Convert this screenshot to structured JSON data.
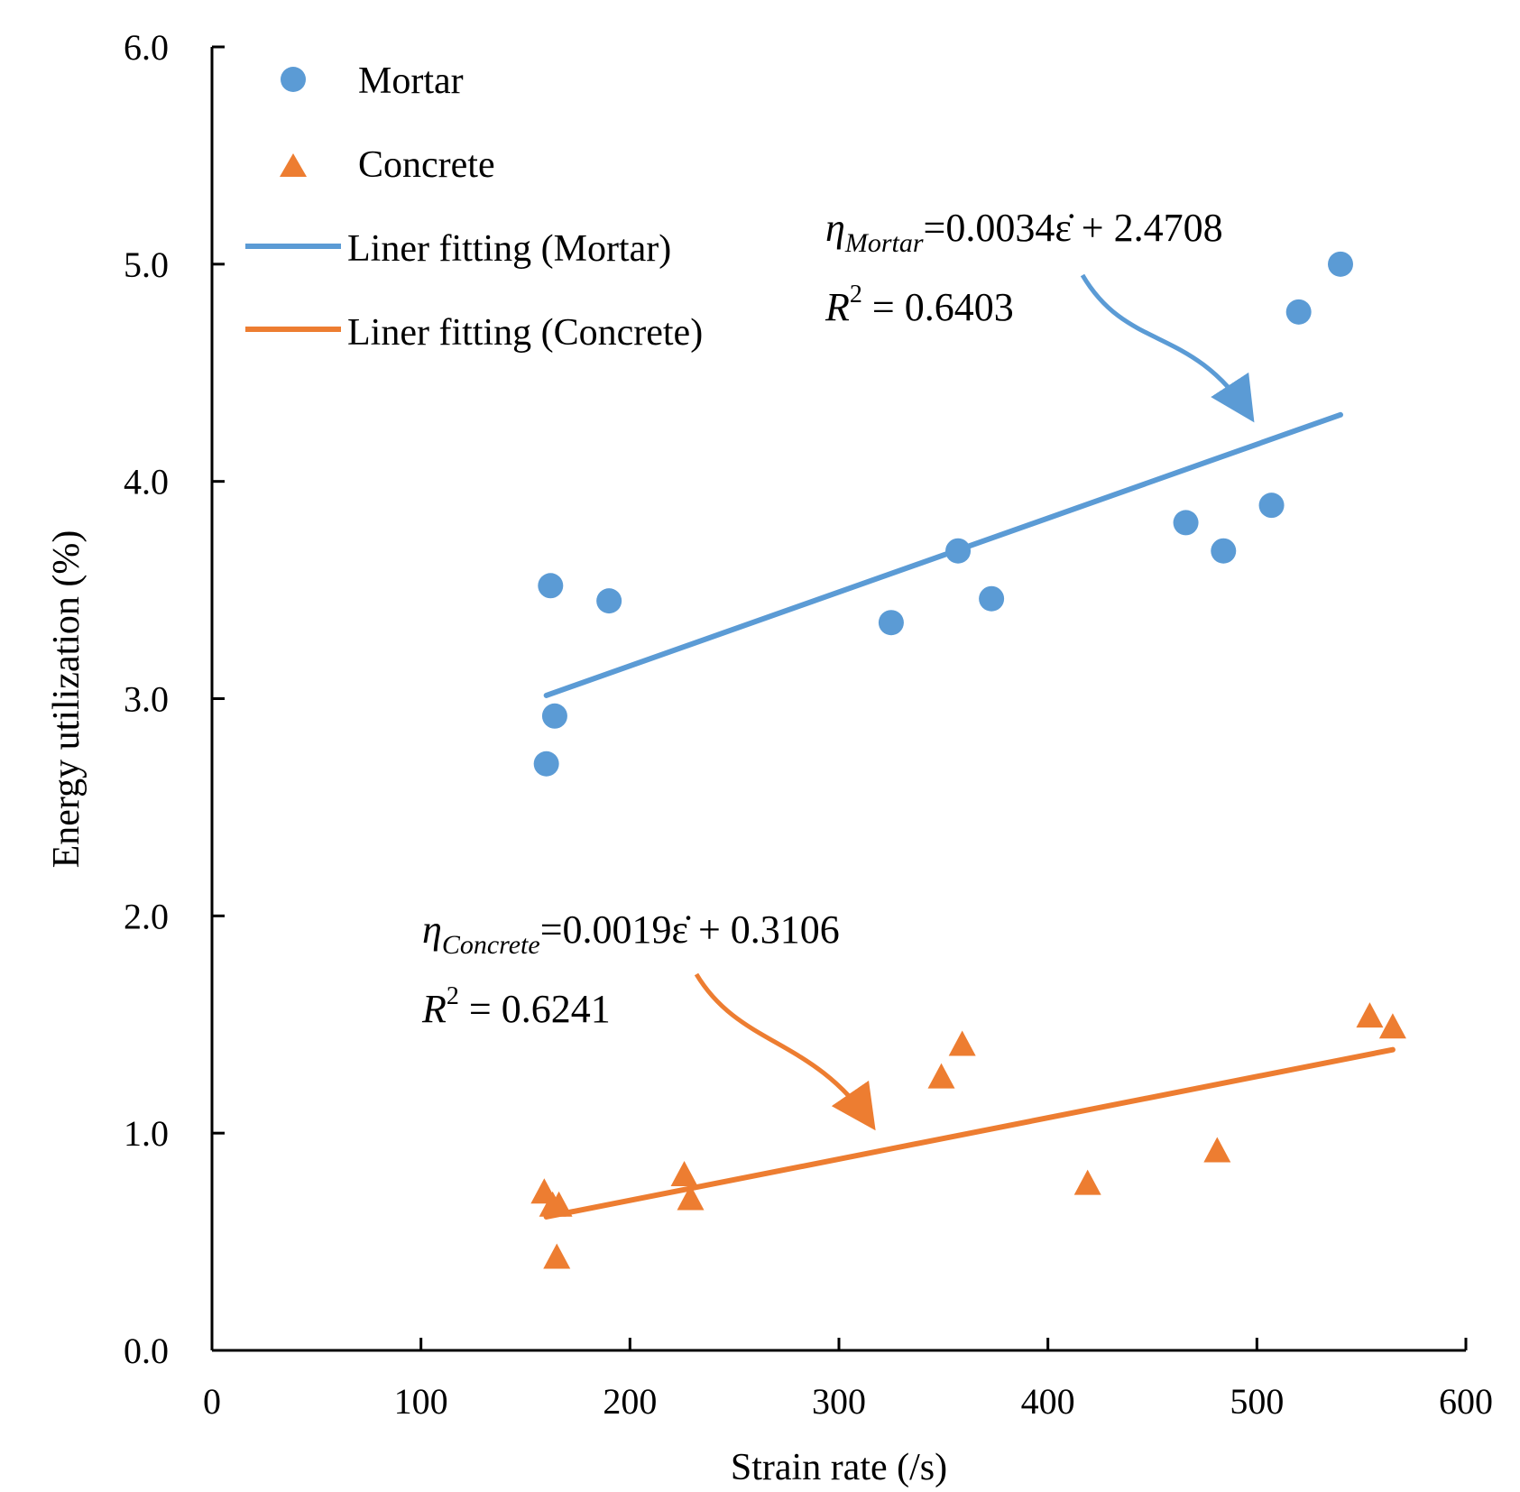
{
  "chart_data": {
    "type": "scatter",
    "title": "",
    "xlabel": "Strain rate (/s)",
    "ylabel": "Energy utilization (%)",
    "xlim": [
      0,
      600
    ],
    "ylim": [
      0.0,
      6.0
    ],
    "xticks": [
      0,
      100,
      200,
      300,
      400,
      500,
      600
    ],
    "xtick_labels": [
      "0",
      "100",
      "200",
      "300",
      "400",
      "500",
      "600"
    ],
    "yticks": [
      0,
      1,
      2,
      3,
      4,
      5,
      6
    ],
    "ytick_labels": [
      "0.0",
      "1.0",
      "2.0",
      "3.0",
      "4.0",
      "5.0",
      "6.0"
    ],
    "grid": false,
    "legend_position": "top-left",
    "series": [
      {
        "name": "Mortar",
        "type": "scatter",
        "marker": "circle",
        "color": "#5B9BD5",
        "x": [
          160,
          162,
          164,
          190,
          325,
          357,
          373,
          466,
          484,
          507,
          520,
          540
        ],
        "y": [
          2.7,
          3.52,
          2.92,
          3.45,
          3.35,
          3.68,
          3.46,
          3.81,
          3.68,
          3.89,
          4.78,
          5.0
        ]
      },
      {
        "name": "Concrete",
        "type": "scatter",
        "marker": "triangle",
        "color": "#ED7D31",
        "x": [
          159,
          163,
          165,
          166,
          226,
          229,
          349,
          359,
          419,
          481,
          554,
          565
        ],
        "y": [
          0.72,
          0.66,
          0.42,
          0.66,
          0.8,
          0.69,
          1.25,
          1.4,
          0.76,
          0.91,
          1.53,
          1.48
        ]
      },
      {
        "name": "Liner fitting (Mortar)",
        "type": "line",
        "color": "#5B9BD5",
        "slope": 0.0034,
        "intercept": 2.4708,
        "x_range": [
          160,
          540
        ]
      },
      {
        "name": "Liner fitting (Concrete)",
        "type": "line",
        "color": "#ED7D31",
        "slope": 0.0019,
        "intercept": 0.3106,
        "x_range": [
          160,
          565
        ]
      }
    ],
    "annotations": [
      {
        "series": "Mortar",
        "symbol": "η",
        "subscript": "Mortar",
        "equation": "=0.0034ε̇ + 2.4708",
        "r2_label": "R",
        "r2_exp": "2",
        "r2_value": " = 0.6403",
        "color": "#5B9BD5",
        "arrow_tip": [
          500,
          4.26
        ]
      },
      {
        "series": "Concrete",
        "symbol": "η",
        "subscript": "Concrete",
        "equation": "=0.0019ε̇ + 0.3106",
        "r2_label": "R",
        "r2_exp": "2",
        "r2_value": " = 0.6241",
        "color": "#ED7D31",
        "arrow_tip": [
          318,
          0.92
        ]
      }
    ]
  }
}
